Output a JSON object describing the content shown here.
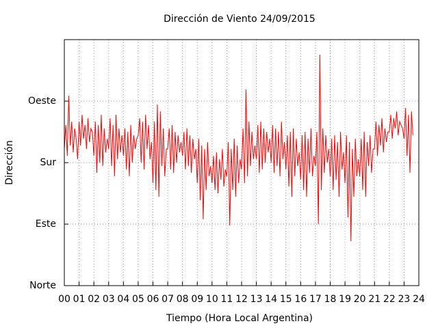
{
  "chart_data": {
    "type": "line",
    "title": "Dirección de Viento 24/09/2015",
    "x_label": "Tiempo (Hora Local Argentina)",
    "y_label": "Dirección",
    "color": "#ff0000",
    "grid": true,
    "xlim": [
      0,
      24
    ],
    "ylim": [
      0,
      360
    ],
    "xticks": [
      {
        "value": 0,
        "label": "00"
      },
      {
        "value": 1,
        "label": "01"
      },
      {
        "value": 2,
        "label": "02"
      },
      {
        "value": 3,
        "label": "03"
      },
      {
        "value": 4,
        "label": "04"
      },
      {
        "value": 5,
        "label": "05"
      },
      {
        "value": 6,
        "label": "06"
      },
      {
        "value": 7,
        "label": "07"
      },
      {
        "value": 8,
        "label": "08"
      },
      {
        "value": 9,
        "label": "09"
      },
      {
        "value": 10,
        "label": "10"
      },
      {
        "value": 11,
        "label": "11"
      },
      {
        "value": 12,
        "label": "12"
      },
      {
        "value": 13,
        "label": "13"
      },
      {
        "value": 14,
        "label": "14"
      },
      {
        "value": 15,
        "label": "15"
      },
      {
        "value": 16,
        "label": "16"
      },
      {
        "value": 17,
        "label": "17"
      },
      {
        "value": 18,
        "label": "18"
      },
      {
        "value": 19,
        "label": "19"
      },
      {
        "value": 20,
        "label": "20"
      },
      {
        "value": 21,
        "label": "21"
      },
      {
        "value": 22,
        "label": "22"
      },
      {
        "value": 23,
        "label": "23"
      },
      {
        "value": 24,
        "label": "24"
      }
    ],
    "yticks": [
      {
        "value": 0,
        "label": "Norte"
      },
      {
        "value": 90,
        "label": "Este"
      },
      {
        "value": 180,
        "label": "Sur"
      },
      {
        "value": 270,
        "label": "Oeste"
      }
    ],
    "x": [
      0,
      0.1,
      0.2,
      0.3,
      0.4,
      0.5,
      0.6,
      0.7,
      0.8,
      0.9,
      1,
      1.1,
      1.2,
      1.3,
      1.4,
      1.5,
      1.6,
      1.7,
      1.8,
      1.9,
      2,
      2.1,
      2.2,
      2.3,
      2.4,
      2.5,
      2.6,
      2.7,
      2.8,
      2.9,
      3,
      3.1,
      3.2,
      3.3,
      3.4,
      3.5,
      3.6,
      3.7,
      3.8,
      3.9,
      4,
      4.1,
      4.2,
      4.3,
      4.4,
      4.5,
      4.6,
      4.7,
      4.8,
      4.9,
      5,
      5.1,
      5.2,
      5.3,
      5.4,
      5.5,
      5.6,
      5.7,
      5.8,
      5.9,
      6,
      6.1,
      6.2,
      6.3,
      6.4,
      6.5,
      6.6,
      6.7,
      6.8,
      6.9,
      7,
      7.1,
      7.2,
      7.3,
      7.4,
      7.5,
      7.6,
      7.7,
      7.8,
      7.9,
      8,
      8.1,
      8.2,
      8.3,
      8.4,
      8.5,
      8.6,
      8.7,
      8.8,
      8.9,
      9,
      9.1,
      9.2,
      9.3,
      9.4,
      9.5,
      9.6,
      9.7,
      9.8,
      9.9,
      10,
      10.1,
      10.2,
      10.3,
      10.4,
      10.5,
      10.6,
      10.7,
      10.8,
      10.9,
      11,
      11.1,
      11.2,
      11.3,
      11.4,
      11.5,
      11.6,
      11.7,
      11.8,
      11.9,
      12,
      12.1,
      12.2,
      12.3,
      12.4,
      12.5,
      12.6,
      12.7,
      12.8,
      12.9,
      13,
      13.1,
      13.2,
      13.3,
      13.4,
      13.5,
      13.6,
      13.7,
      13.8,
      13.9,
      14,
      14.1,
      14.2,
      14.3,
      14.4,
      14.5,
      14.6,
      14.7,
      14.8,
      14.9,
      15,
      15.1,
      15.2,
      15.3,
      15.4,
      15.5,
      15.6,
      15.7,
      15.8,
      15.9,
      16,
      16.1,
      16.2,
      16.3,
      16.4,
      16.5,
      16.6,
      16.7,
      16.8,
      16.9,
      17,
      17.1,
      17.2,
      17.3,
      17.4,
      17.5,
      17.6,
      17.7,
      17.8,
      17.9,
      18,
      18.1,
      18.2,
      18.3,
      18.4,
      18.5,
      18.6,
      18.7,
      18.8,
      18.9,
      19,
      19.1,
      19.2,
      19.3,
      19.4,
      19.5,
      19.6,
      19.7,
      19.8,
      19.9,
      20,
      20.1,
      20.2,
      20.3,
      20.4,
      20.5,
      20.6,
      20.7,
      20.8,
      20.9,
      21,
      21.1,
      21.2,
      21.3,
      21.4,
      21.5,
      21.6,
      21.7,
      21.8,
      21.9,
      22,
      22.1,
      22.2,
      22.3,
      22.4,
      22.5,
      22.6,
      22.7,
      22.8,
      22.9,
      23,
      23.1,
      23.2,
      23.3,
      23.4,
      23.5,
      23.6
    ],
    "values": [
      200,
      235,
      190,
      278,
      205,
      240,
      195,
      230,
      215,
      185,
      240,
      205,
      250,
      215,
      235,
      200,
      245,
      210,
      230,
      225,
      190,
      240,
      165,
      235,
      180,
      250,
      175,
      230,
      195,
      215,
      200,
      245,
      175,
      235,
      160,
      250,
      185,
      230,
      195,
      220,
      190,
      230,
      170,
      225,
      160,
      235,
      180,
      220,
      200,
      215,
      220,
      245,
      180,
      240,
      170,
      250,
      200,
      235,
      185,
      210,
      150,
      240,
      140,
      265,
      130,
      255,
      175,
      230,
      160,
      200,
      200,
      230,
      170,
      235,
      165,
      225,
      180,
      220,
      195,
      210,
      190,
      225,
      170,
      230,
      175,
      220,
      165,
      215,
      185,
      200,
      150,
      215,
      125,
      205,
      97,
      200,
      140,
      210,
      160,
      175,
      150,
      190,
      140,
      195,
      135,
      185,
      155,
      200,
      145,
      170,
      160,
      210,
      88,
      200,
      140,
      215,
      130,
      205,
      150,
      185,
      170,
      230,
      150,
      287,
      160,
      240,
      175,
      225,
      185,
      205,
      185,
      235,
      165,
      240,
      170,
      230,
      180,
      225,
      195,
      215,
      180,
      235,
      165,
      230,
      175,
      225,
      160,
      240,
      185,
      210,
      170,
      220,
      145,
      225,
      130,
      230,
      160,
      215,
      175,
      195,
      155,
      220,
      140,
      225,
      130,
      215,
      165,
      230,
      160,
      190,
      175,
      225,
      90,
      338,
      140,
      230,
      165,
      220,
      180,
      200,
      160,
      215,
      140,
      220,
      155,
      210,
      130,
      225,
      170,
      195,
      150,
      220,
      100,
      210,
      65,
      200,
      130,
      215,
      160,
      185,
      160,
      215,
      140,
      225,
      130,
      210,
      175,
      220,
      165,
      200,
      200,
      240,
      190,
      235,
      205,
      245,
      195,
      230,
      210,
      225,
      225,
      250,
      215,
      245,
      230,
      255,
      220,
      240,
      235,
      230,
      215,
      260,
      190,
      250,
      165,
      255,
      220
    ]
  }
}
